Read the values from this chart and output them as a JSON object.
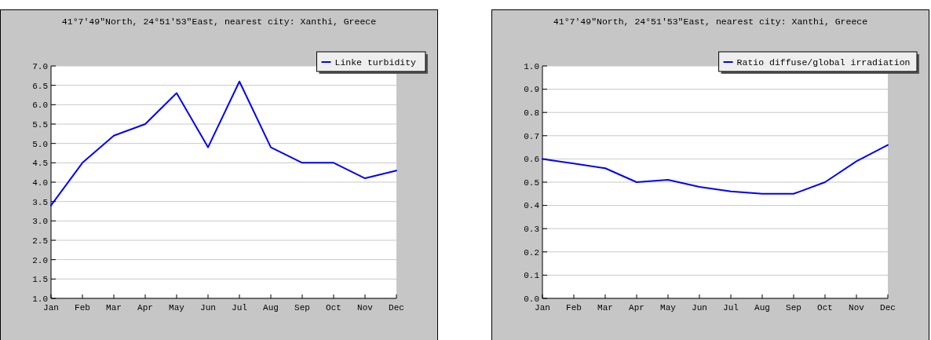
{
  "chart_data": [
    {
      "type": "line",
      "title": "41°7′49\"North, 24°51′53\"East, nearest city: Xanthi, Greece",
      "categories": [
        "Jan",
        "Feb",
        "Mar",
        "Apr",
        "May",
        "Jun",
        "Jul",
        "Aug",
        "Sep",
        "Oct",
        "Nov",
        "Dec"
      ],
      "series": [
        {
          "name": "Linke turbidity",
          "color": "#0000ff",
          "values": [
            3.4,
            4.5,
            5.2,
            5.5,
            6.3,
            4.9,
            6.6,
            4.9,
            4.5,
            4.5,
            4.1,
            4.3
          ]
        }
      ],
      "ylim": [
        1.0,
        7.0
      ],
      "yticks": [
        {
          "value": 1,
          "label": "1.0"
        },
        1.5,
        {
          "value": 2,
          "label": "2.0"
        },
        2.5,
        {
          "value": 3,
          "label": "3.0"
        },
        3.5,
        {
          "value": 4,
          "label": "4.0"
        },
        4.5,
        {
          "value": 5,
          "label": "5.0"
        },
        5.5,
        {
          "value": 6,
          "label": "6.0"
        },
        6.5,
        {
          "value": 7,
          "label": "7.0"
        }
      ],
      "grid": "y",
      "legend": "top right",
      "marker": "none",
      "line_style": "solid"
    },
    {
      "type": "line",
      "title": "41°7′49\"North, 24°51′53\"East, nearest city: Xanthi, Greece",
      "categories": [
        "Jan",
        "Feb",
        "Mar",
        "Apr",
        "May",
        "Jun",
        "Jul",
        "Aug",
        "Sep",
        "Oct",
        "Nov",
        "Dec"
      ],
      "series": [
        {
          "name": "Ratio diffuse/global irradiation",
          "color": "#0000ff",
          "values": [
            0.6,
            0.58,
            0.56,
            0.5,
            0.51,
            0.48,
            0.46,
            0.45,
            0.45,
            0.5,
            0.59,
            0.66
          ]
        }
      ],
      "ylim": [
        0.0,
        1.0
      ],
      "yticks": [
        {
          "value": 0,
          "label": "0.0"
        },
        0.1,
        0.2,
        0.3,
        0.4,
        0.5,
        0.6,
        0.7,
        0.8,
        0.9,
        {
          "value": 1,
          "label": "1.0"
        }
      ],
      "grid": "y",
      "legend": "top right",
      "marker": "none",
      "line_style": "solid"
    }
  ]
}
